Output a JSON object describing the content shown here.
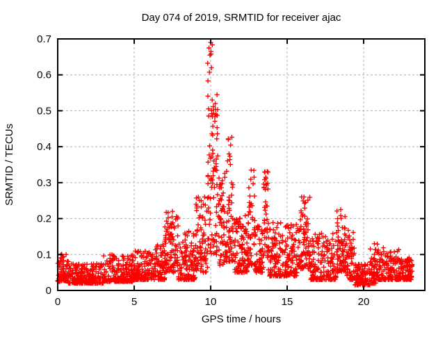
{
  "figure": {
    "title": "Day 074 of 2019, SRMTID for receiver ajac",
    "xlabel": "GPS time / hours",
    "ylabel": "SRMTID / TECUs"
  },
  "colors": {
    "marker": "#ff0000",
    "grid": "#b0b0b0",
    "border": "#000000",
    "background": "#ffffff"
  },
  "chart_data": {
    "type": "scatter",
    "title": "Day 074 of 2019, SRMTID for receiver ajac",
    "xlabel": "GPS time / hours",
    "ylabel": "SRMTID / TECUs",
    "xlim": [
      0,
      24
    ],
    "ylim": [
      0,
      0.7
    ],
    "xticks": [
      0,
      5,
      10,
      15,
      20
    ],
    "yticks": [
      0,
      0.1,
      0.2,
      0.3,
      0.4,
      0.5,
      0.6,
      0.7
    ],
    "grid": "dashed gray, both axes, mirrored inside ticks on all four borders",
    "legend": "none",
    "marker": {
      "shape": "plus",
      "color": "#ff0000",
      "size": 7,
      "stroke_width": 1.4
    },
    "series_name": "SRMTID",
    "data_time_span_hours": [
      0.05,
      23.2
    ],
    "peak": {
      "t": 10.0,
      "value": 0.69
    },
    "notable_points": [
      [
        0.55,
        0.1
      ],
      [
        3.7,
        0.095
      ],
      [
        5.2,
        0.105
      ],
      [
        7.5,
        0.22
      ],
      [
        9.6,
        0.26
      ],
      [
        9.95,
        0.655
      ],
      [
        10.0,
        0.69
      ],
      [
        10.02,
        0.665
      ],
      [
        10.05,
        0.62
      ],
      [
        10.1,
        0.53
      ],
      [
        10.3,
        0.52
      ],
      [
        10.35,
        0.49
      ],
      [
        11.15,
        0.42
      ],
      [
        11.2,
        0.38
      ],
      [
        12.65,
        0.335
      ],
      [
        13.55,
        0.33
      ],
      [
        13.6,
        0.315
      ],
      [
        16.1,
        0.26
      ],
      [
        16.2,
        0.245
      ],
      [
        18.5,
        0.225
      ],
      [
        20.7,
        0.13
      ]
    ],
    "segments_format": [
      "t_start_h",
      "t_end_h",
      "n_points",
      "y_low_TECU",
      "y_high_TECU",
      "skew_toward_low"
    ],
    "density_segments": [
      [
        0.0,
        0.7,
        70,
        0.025,
        0.105,
        2.4
      ],
      [
        0.7,
        3.0,
        230,
        0.02,
        0.075,
        2.0
      ],
      [
        3.0,
        5.0,
        200,
        0.025,
        0.1,
        2.4
      ],
      [
        5.0,
        6.3,
        130,
        0.03,
        0.11,
        2.4
      ],
      [
        6.3,
        7.0,
        70,
        0.03,
        0.13,
        2.0
      ],
      [
        7.0,
        7.9,
        95,
        0.05,
        0.225,
        1.7
      ],
      [
        7.9,
        9.0,
        110,
        0.03,
        0.17,
        2.2
      ],
      [
        9.0,
        9.8,
        80,
        0.05,
        0.26,
        1.7
      ],
      [
        9.8,
        10.15,
        48,
        0.1,
        0.695,
        1.25
      ],
      [
        10.15,
        10.5,
        42,
        0.1,
        0.55,
        1.5
      ],
      [
        10.5,
        11.0,
        55,
        0.07,
        0.33,
        1.8
      ],
      [
        11.0,
        11.5,
        58,
        0.08,
        0.43,
        1.7
      ],
      [
        11.5,
        12.4,
        95,
        0.05,
        0.21,
        1.8
      ],
      [
        12.4,
        12.9,
        55,
        0.07,
        0.34,
        1.9
      ],
      [
        12.9,
        13.45,
        60,
        0.05,
        0.18,
        1.8
      ],
      [
        13.45,
        13.75,
        38,
        0.09,
        0.34,
        1.4
      ],
      [
        13.75,
        15.7,
        200,
        0.04,
        0.19,
        2.1
      ],
      [
        15.7,
        16.5,
        85,
        0.06,
        0.26,
        1.7
      ],
      [
        16.5,
        18.2,
        170,
        0.03,
        0.16,
        2.2
      ],
      [
        18.2,
        18.85,
        70,
        0.05,
        0.225,
        1.7
      ],
      [
        18.85,
        19.4,
        55,
        0.03,
        0.17,
        2.0
      ],
      [
        19.4,
        20.4,
        100,
        0.015,
        0.08,
        2.0
      ],
      [
        20.4,
        20.95,
        55,
        0.02,
        0.13,
        1.8
      ],
      [
        20.95,
        22.4,
        140,
        0.03,
        0.12,
        2.2
      ],
      [
        22.4,
        23.2,
        85,
        0.03,
        0.095,
        2.0
      ]
    ]
  }
}
